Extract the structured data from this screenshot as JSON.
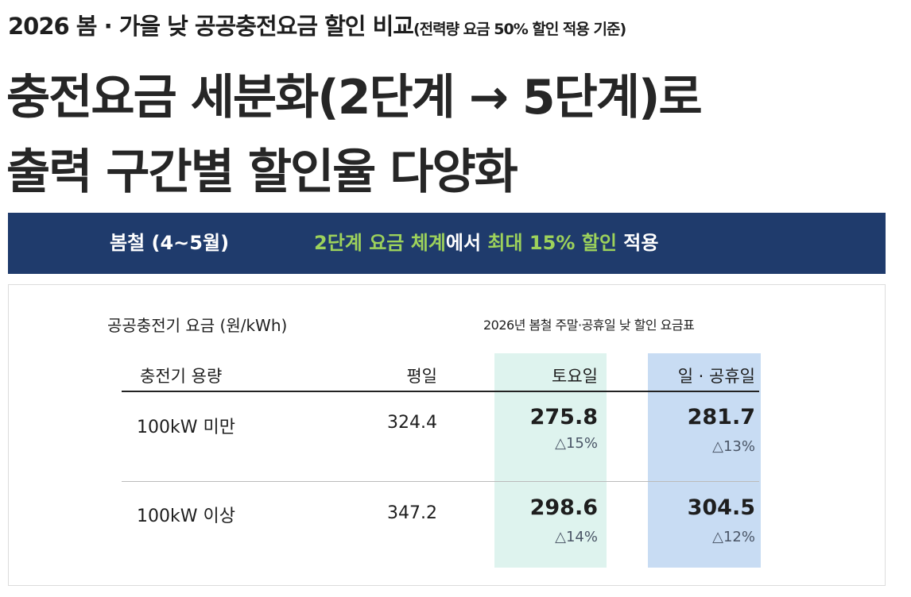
{
  "header": {
    "title": "2026 봄 · 가을 낮 공공충전요금 할인 비교",
    "subtitle": "(전력량 요금 50% 할인 적용 기준)",
    "headline": [
      "충전요금 세분화(2단계 → 5단계)로",
      "출력 구간별 할인율 다양화"
    ]
  },
  "banner": {
    "season": "봄철 (4~5월)",
    "message": [
      "2단계 요금 체계",
      "에서",
      "최대 15% 할인",
      "적용"
    ]
  },
  "table": {
    "caption": "공공충전기 요금 (원/kWh)",
    "note": "2026년 봄철 주말·공휴일 낮 할인 요금표",
    "columns": [
      "충전기 용량",
      "평일",
      "토요일",
      "일 · 공휴일"
    ],
    "rows": [
      {
        "capacity": "100kW 미만",
        "weekday": 324.4,
        "saturday": 275.8,
        "saturday_discount": "△15%",
        "holiday": 281.7,
        "holiday_discount": "△13%"
      },
      {
        "capacity": "100kW 이상",
        "weekday": 347.2,
        "saturday": 298.6,
        "saturday_discount": "△14%",
        "holiday": 304.5,
        "holiday_discount": "△12%"
      }
    ]
  }
}
